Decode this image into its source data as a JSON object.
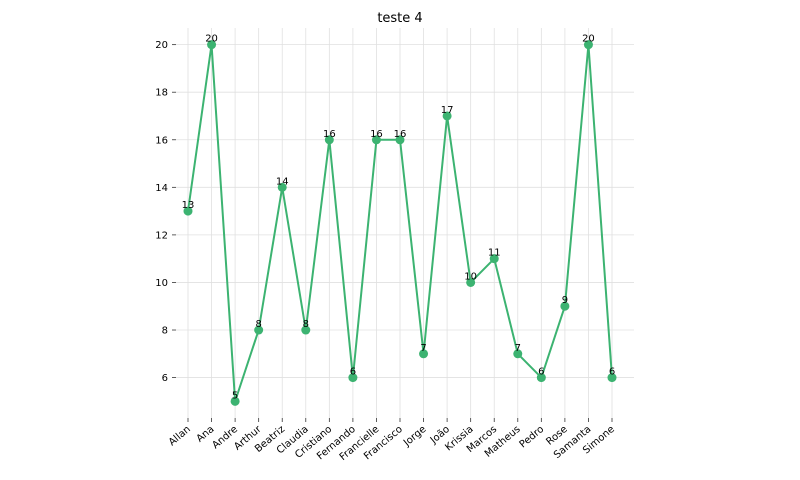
{
  "chart_data": {
    "type": "line",
    "title": "teste 4",
    "xlabel": "",
    "ylabel": "",
    "categories": [
      "Allan",
      "Ana",
      "Andre",
      "Arthur",
      "Beatriz",
      "Claudia",
      "Cristiano",
      "Fernando",
      "Francielle",
      "Francisco",
      "Jorge",
      "João",
      "Krissia",
      "Marcos",
      "Matheus",
      "Pedro",
      "Rose",
      "Samanta",
      "Simone"
    ],
    "values": [
      13,
      20,
      5,
      8,
      14,
      8,
      16,
      6,
      16,
      16,
      7,
      17,
      10,
      11,
      7,
      6,
      9,
      20,
      6
    ],
    "y_ticks": [
      6,
      8,
      10,
      12,
      14,
      16,
      18,
      20
    ],
    "ylim": [
      4.3,
      20.7
    ],
    "grid": true,
    "color": "#3cb371",
    "show_data_labels": true
  }
}
